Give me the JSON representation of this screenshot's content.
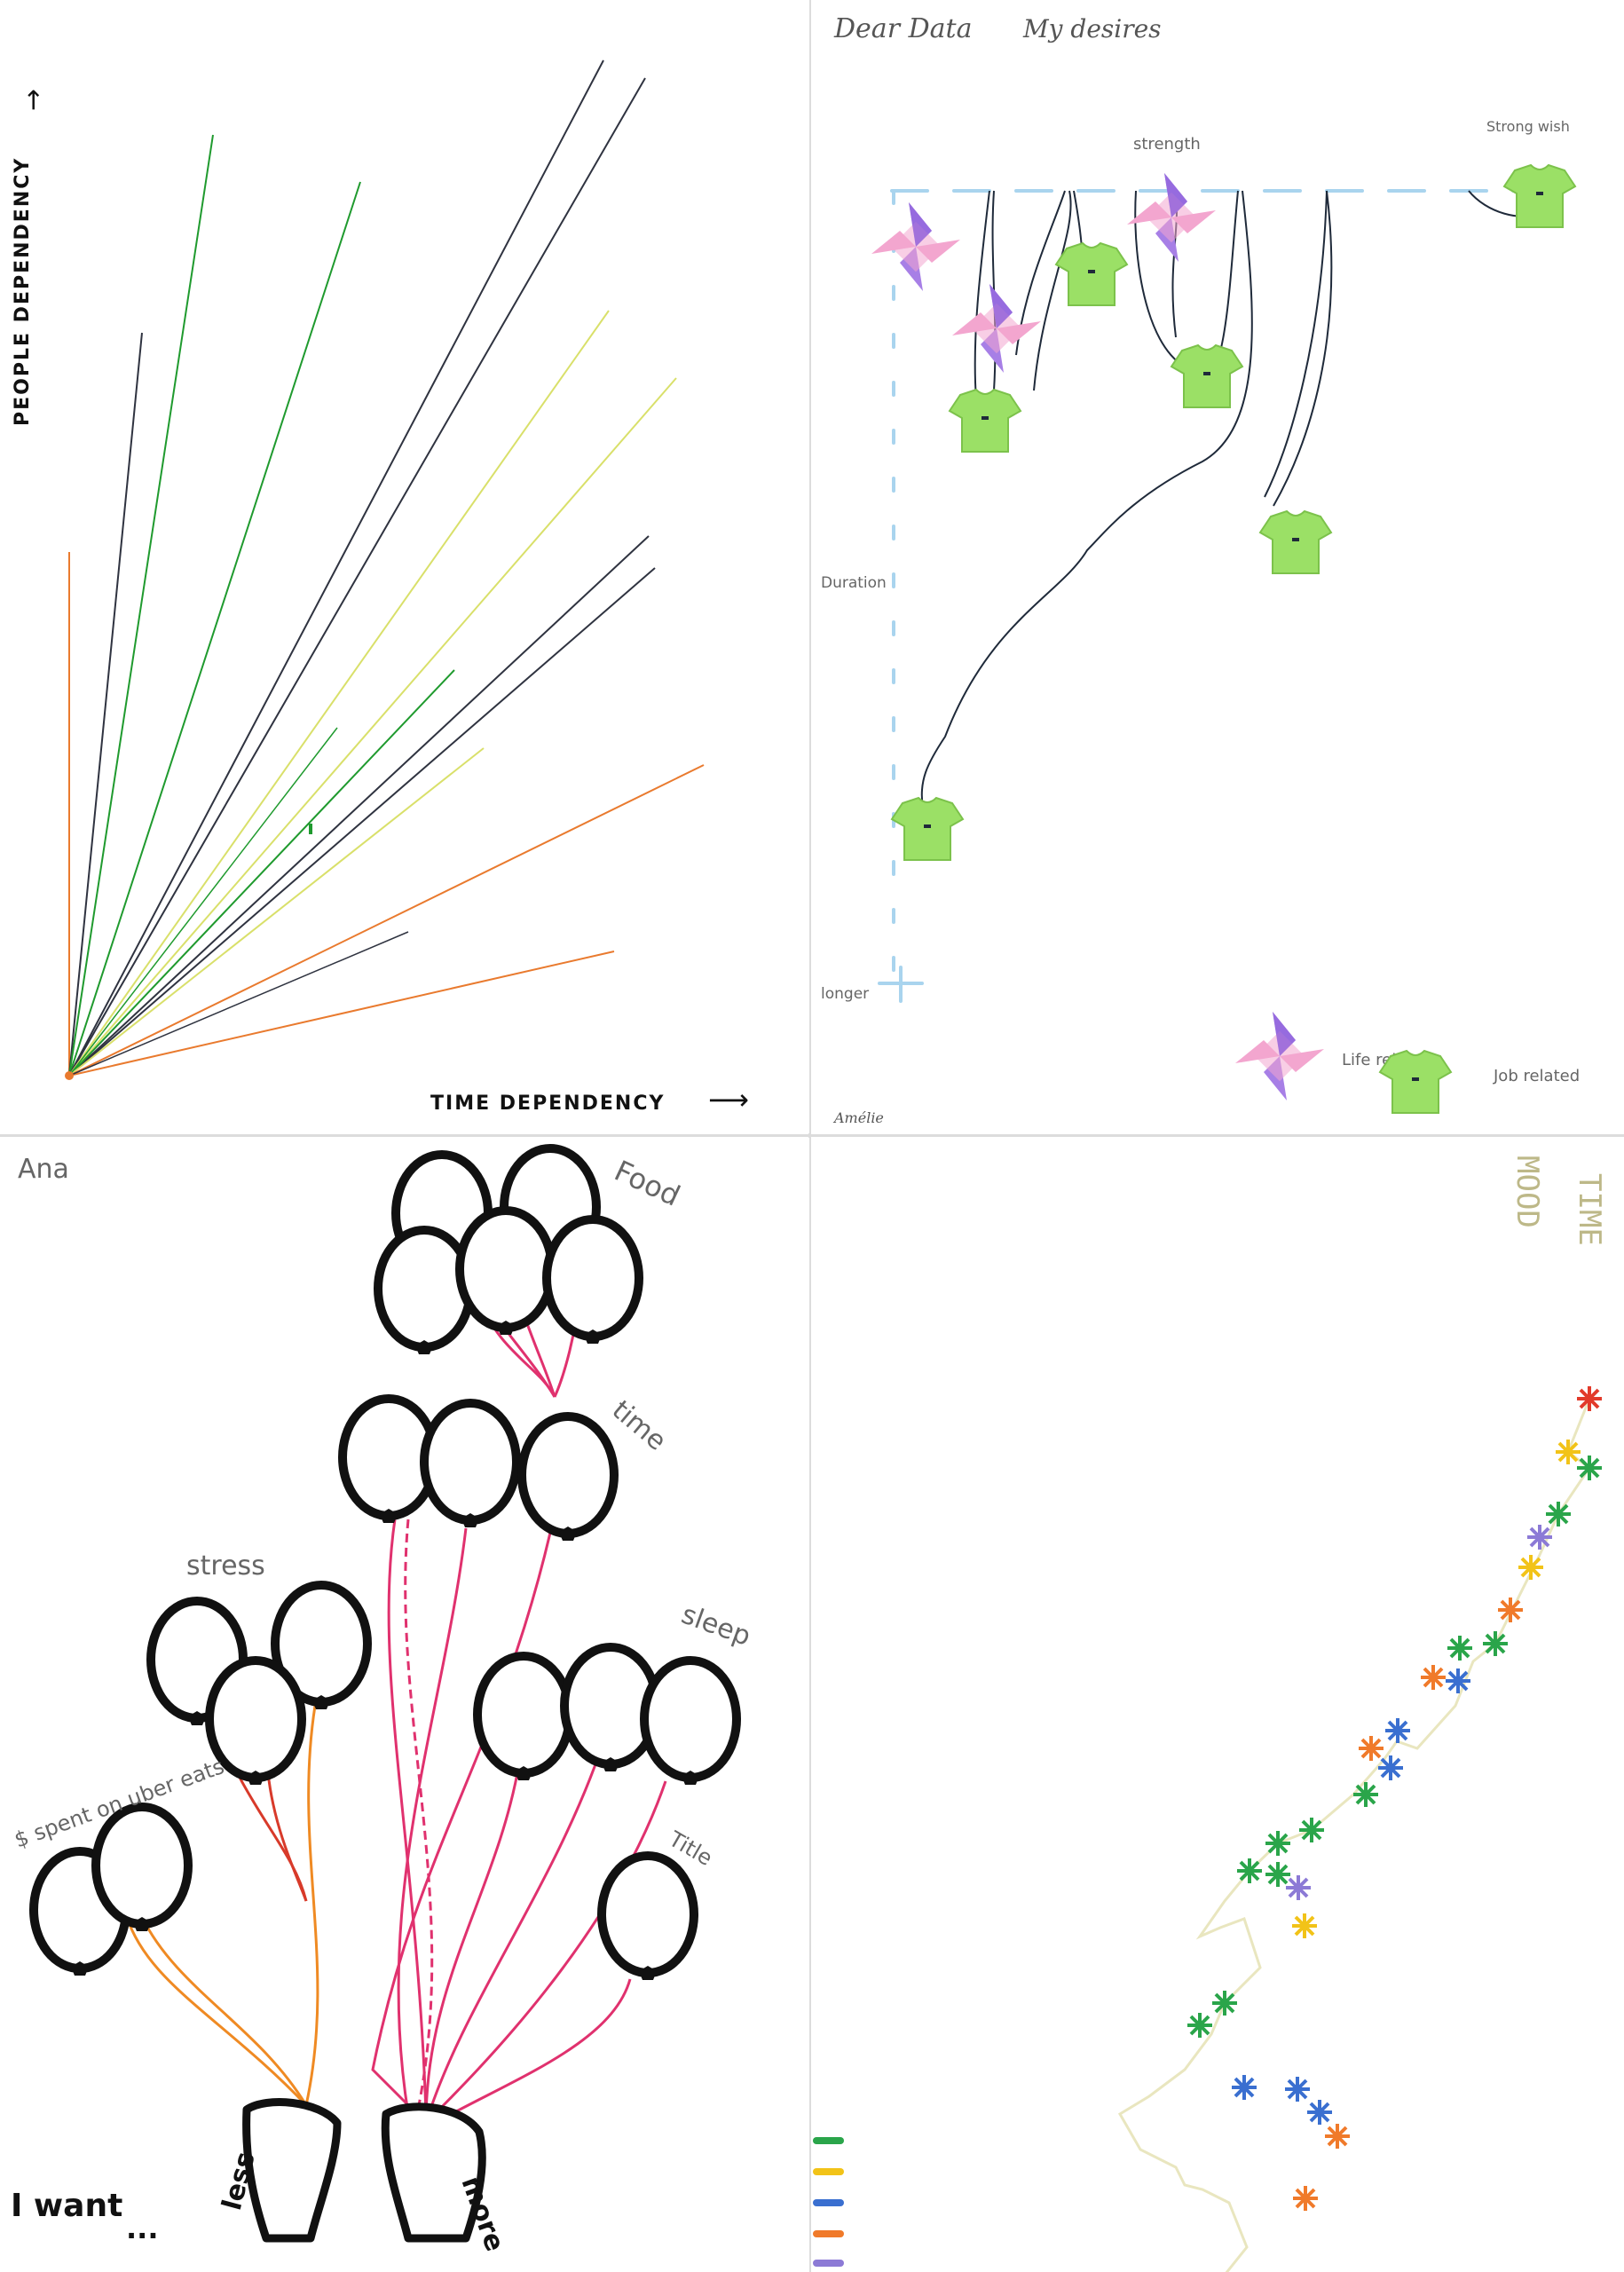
{
  "top_left": {
    "y_axis_label": "PEOPLE DEPENDENCY",
    "x_axis_label": "TIME DEPENDENCY",
    "colors": {
      "green": "#1f9a2e",
      "dark": "#2f3340",
      "yellow": "#d9e06a",
      "orange": "#e97a2e"
    }
  },
  "top_right": {
    "title_left": "Dear Data",
    "title_right": "My desires",
    "label_strength": "strength",
    "label_strong_wish": "Strong wish",
    "label_duration": "Duration",
    "label_longer": "longer",
    "signature": "Amélie",
    "legend": [
      {
        "icon": "pinwheel-icon",
        "label": "Life related"
      },
      {
        "icon": "shirt-icon",
        "label": "Job related"
      }
    ],
    "colors": {
      "thread": "#1f2a3a",
      "dash": "#a9d4ee",
      "shirt": "#9be066",
      "pinwheel_purple": "#a77fe6",
      "pinwheel_pink": "#f3a6cf"
    }
  },
  "bottom_left": {
    "name": "Ana",
    "labels": {
      "food": "Food",
      "time": "time",
      "stress": "stress",
      "sleep": "sleep",
      "title": "Title",
      "money": "$ spent on uber eats",
      "less": "less",
      "more": "more"
    },
    "bottom_text": "I want",
    "ellipsis": "...",
    "colors": {
      "pink": "#e0316e",
      "orange": "#ef8a23",
      "red": "#d83a2a"
    }
  },
  "bottom_right": {
    "corner_label_1": "MOOD",
    "corner_label_2": "TIME",
    "colors": {
      "green": "#2aa54a",
      "blue": "#3a6fd0",
      "orange": "#f07a2a",
      "yellow": "#f2c318",
      "purple": "#8c7ad6",
      "red": "#e23a2a",
      "thread": "#e9e6bf"
    }
  }
}
